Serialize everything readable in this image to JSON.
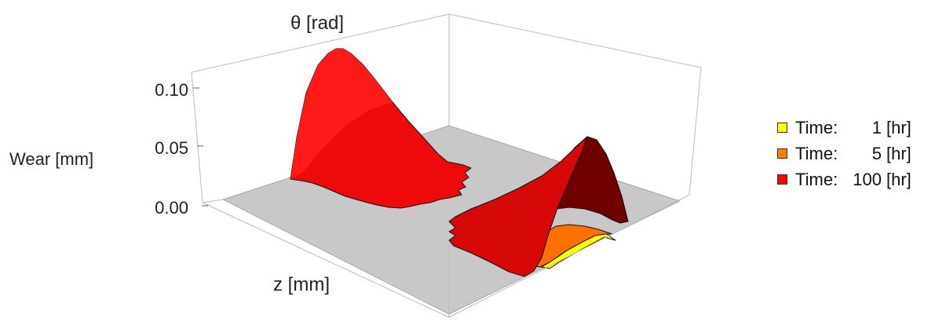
{
  "chart_data": {
    "type": "surface3d",
    "axes": {
      "x_label": "z [mm]",
      "y_label": "θ [rad]",
      "z_label": "Wear [mm]",
      "z_ticks": [
        "0.00",
        "0.05",
        "0.10"
      ],
      "z_tick_values": [
        0.0,
        0.05,
        0.1
      ],
      "z_range": [
        0.0,
        0.12
      ]
    },
    "series": [
      {
        "name": "Time: 1 [hr]",
        "time_label": "Time:",
        "time_value": "1",
        "unit": "[hr]",
        "color": "#ffff00",
        "peak_wear": 0.006
      },
      {
        "name": "Time: 5 [hr]",
        "time_label": "Time:",
        "time_value": "5",
        "unit": "[hr]",
        "color": "#ff8000",
        "peak_wear": 0.012
      },
      {
        "name": "Time: 100 [hr]",
        "time_label": "Time:",
        "time_value": "100",
        "unit": "[hr]",
        "color": "#ff0000",
        "peak_wear": 0.11
      }
    ],
    "box": true,
    "floor_color": "#c8c8c8",
    "legend_position": "right"
  }
}
